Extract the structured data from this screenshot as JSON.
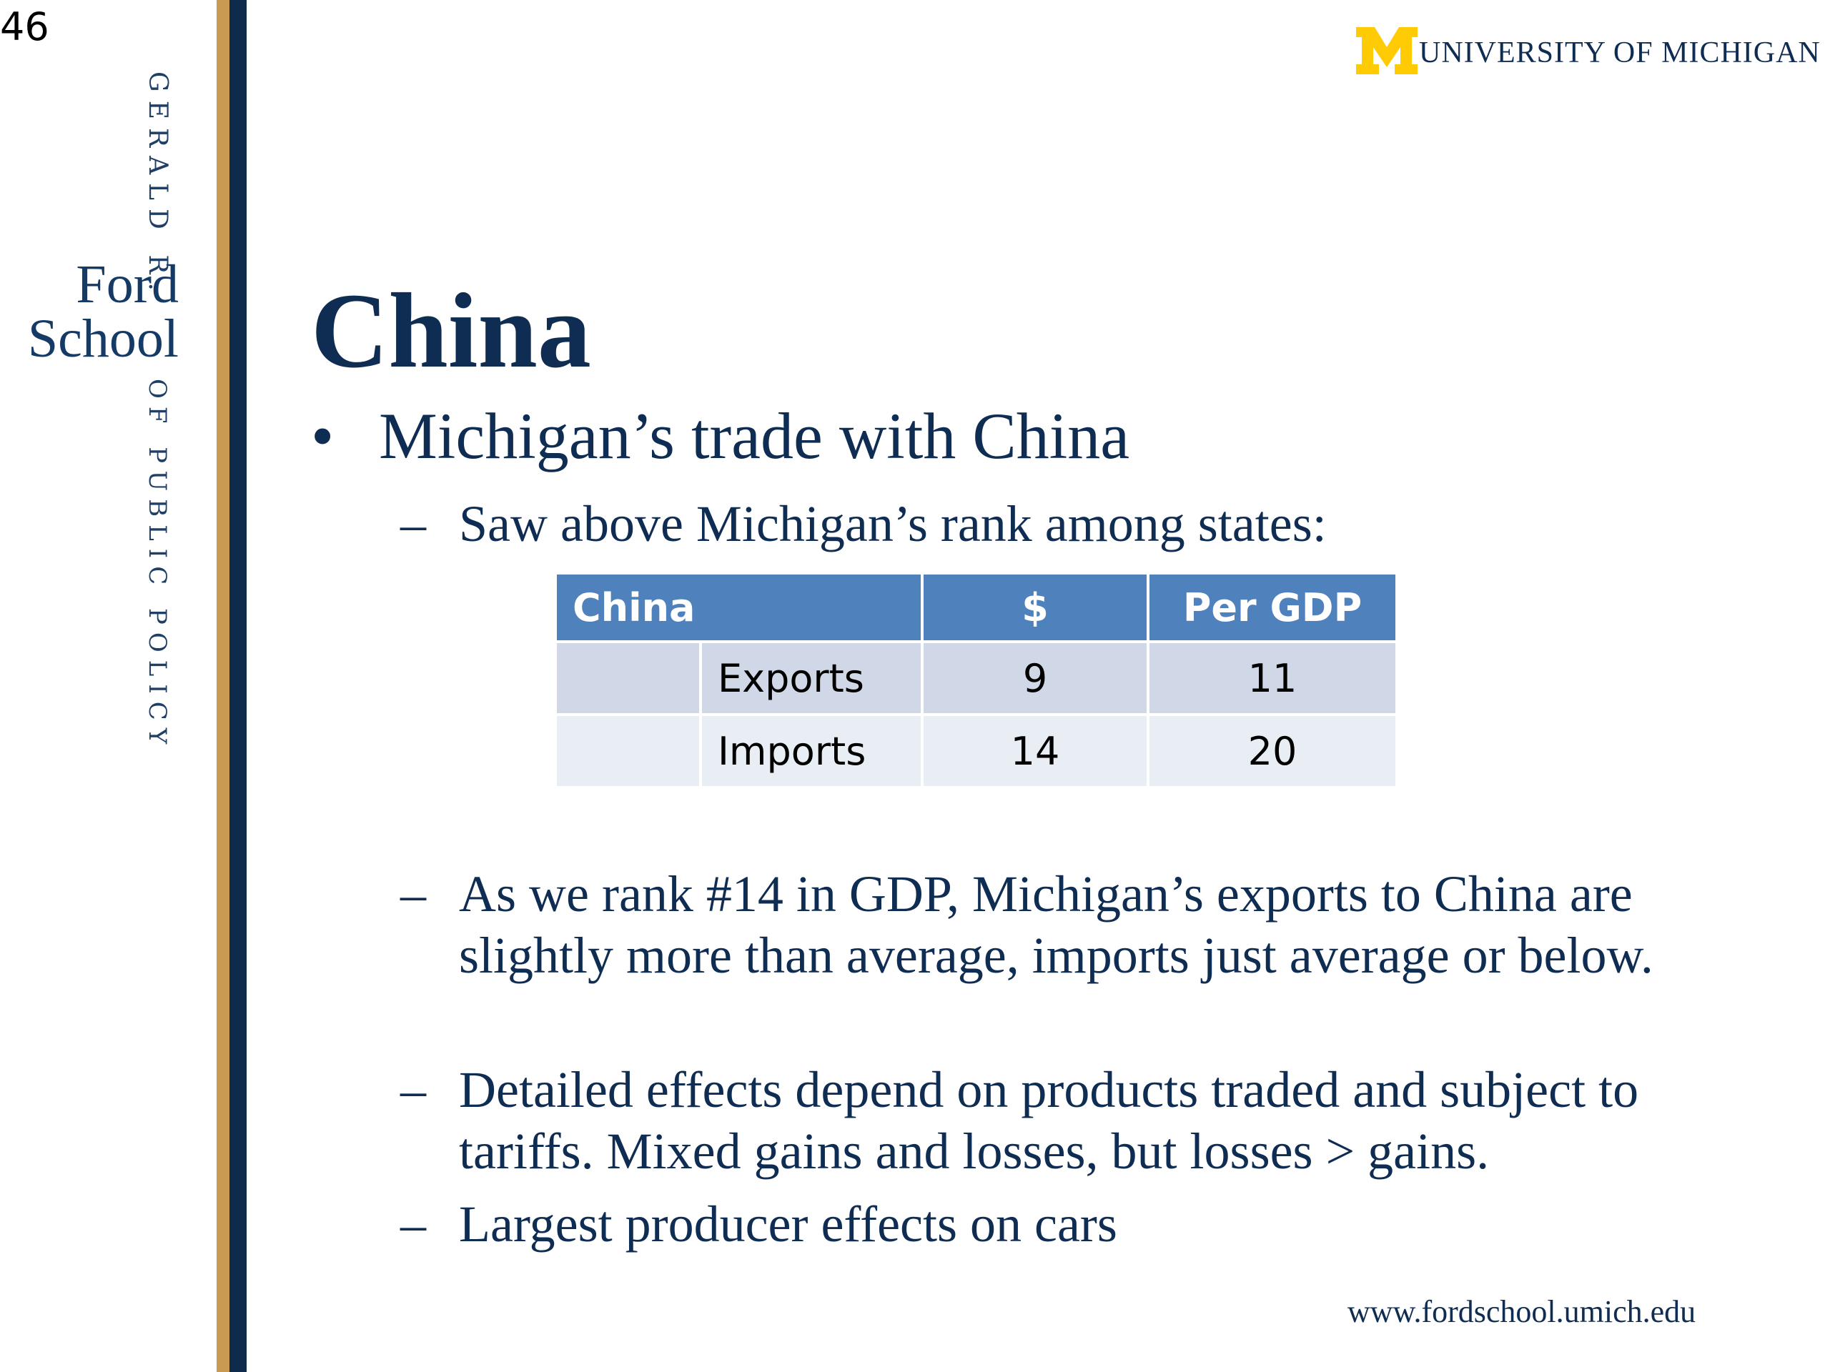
{
  "slide_number": "46",
  "sidebar": {
    "top_text": "GERALD R.",
    "school_line1": "Ford",
    "school_line2": "School",
    "bottom_text": "OF PUBLIC POLICY"
  },
  "header": {
    "logo_letter": "M",
    "logo_text": "UNIVERSITY OF MICHIGAN",
    "colors": {
      "maize": "#FFCB05",
      "blue": "#0F2D52"
    }
  },
  "title": "China",
  "bullet": "Michigan’s trade with China",
  "sub1": "Saw above Michigan’s rank among states:",
  "table": {
    "headers": [
      "China",
      "$",
      "Per GDP"
    ],
    "rows": [
      {
        "label": "Exports",
        "dollars": "9",
        "per_gdp": "11"
      },
      {
        "label": "Imports",
        "dollars": "14",
        "per_gdp": "20"
      }
    ]
  },
  "sub2": "As we rank #14 in GDP, Michigan’s exports to China are slightly more than average, imports just average or below.",
  "sub3": "Detailed effects depend on products traded and subject to tariffs.  Mixed gains and losses, but losses > gains.",
  "sub4": "Largest producer effects on cars",
  "dash": "–",
  "dot": "•",
  "footer_url": "www.fordschool.umich.edu"
}
